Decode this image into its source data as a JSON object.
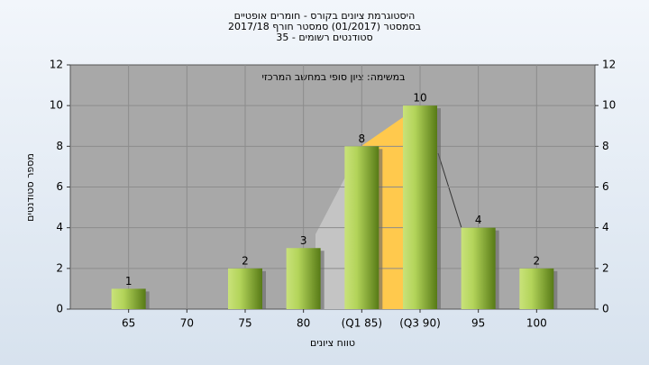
{
  "chart_data": {
    "type": "bar",
    "title": "היסטוגרמת ציונים בקורס - חומרים אופטיים",
    "subtitle": "בסמסטר (01/2017) סמסטר חורף 2017/18",
    "subtitle2": "סטודנטים רשומים - 35",
    "annotation": "במשימה: ציון סופי במחשב המרכזי",
    "x_label": "טווח ציונים",
    "y_label": "מספר סטודנטים",
    "categories": [
      "65",
      "70",
      "75",
      "80",
      "(Q1 85)",
      "(Q3 90)",
      "95",
      "100"
    ],
    "values": [
      1,
      0,
      2,
      3,
      8,
      10,
      4,
      2
    ],
    "ylim": [
      0,
      12
    ],
    "yticks": [
      0,
      2,
      4,
      6,
      8,
      10,
      12
    ],
    "grid": true
  }
}
